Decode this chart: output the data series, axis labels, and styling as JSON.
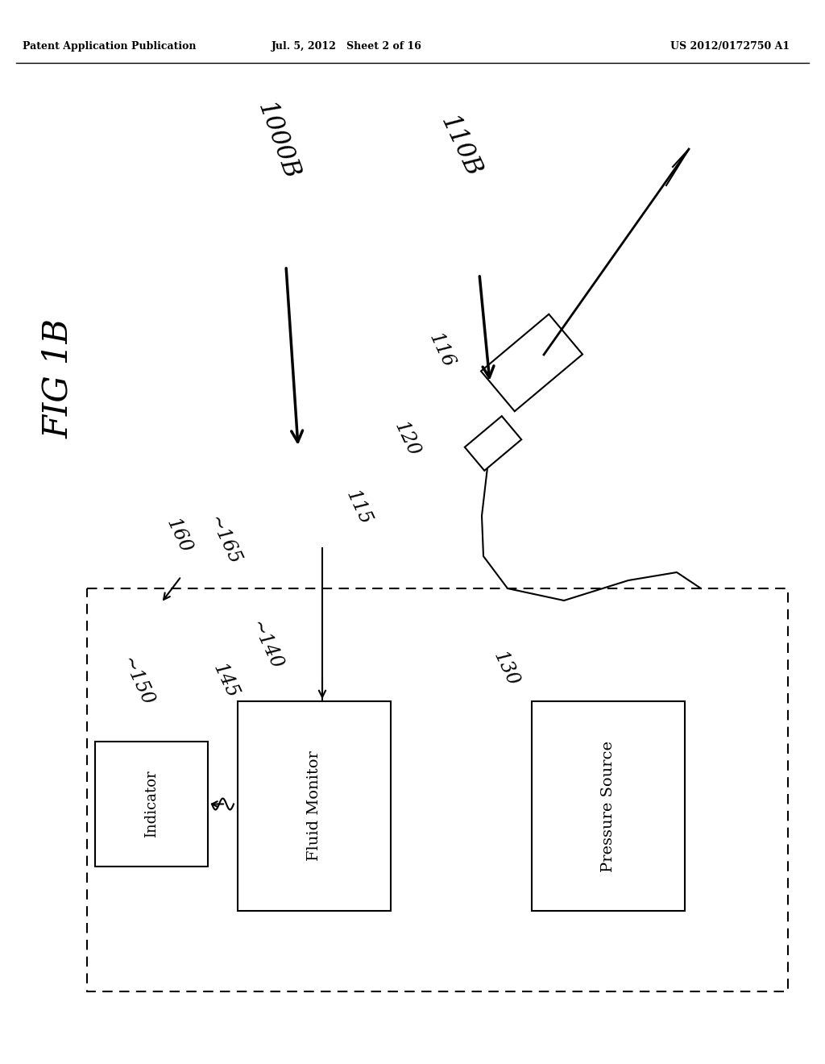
{
  "bg_color": "#ffffff",
  "header_left": "Patent Application Publication",
  "header_center": "Jul. 5, 2012   Sheet 2 of 16",
  "header_right": "US 2012/0172750 A1"
}
